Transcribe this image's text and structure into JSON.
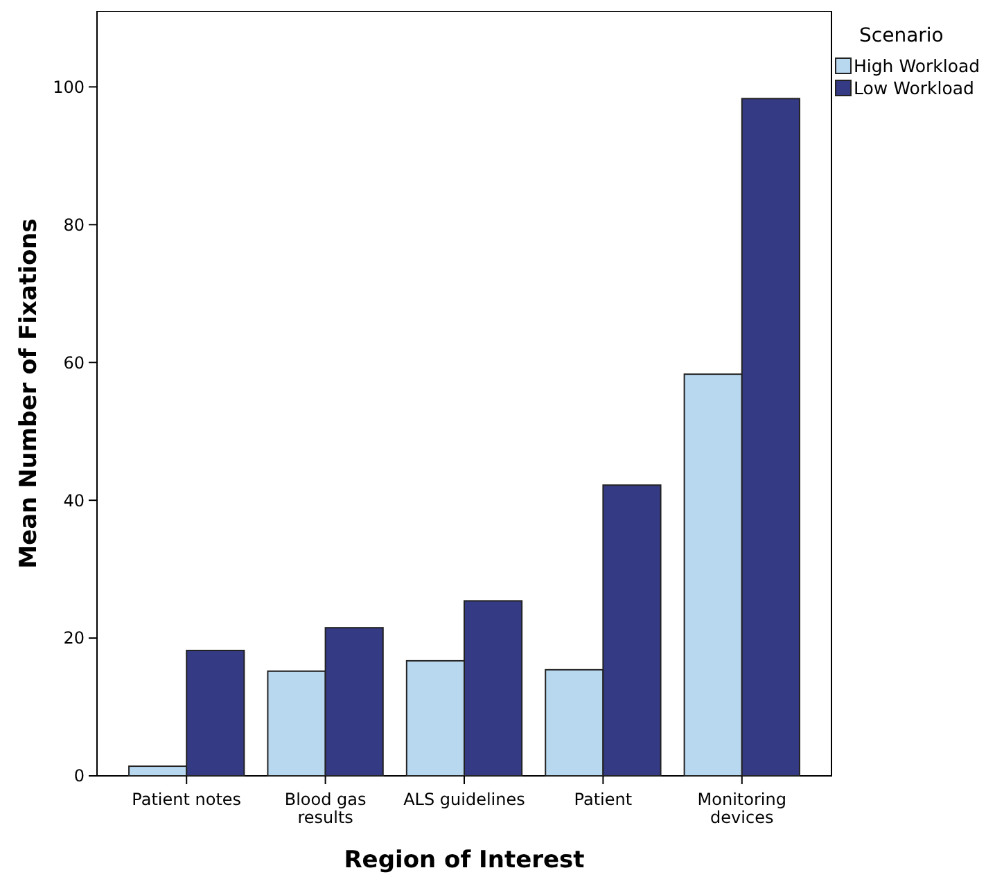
{
  "chart_data": {
    "type": "bar",
    "xlabel": "Region of Interest",
    "ylabel": "Mean Number of Fixations",
    "legend_title": "Scenario",
    "categories": [
      "Patient notes",
      "Blood gas results",
      "ALS guidelines",
      "Patient",
      "Monitoring devices"
    ],
    "series": [
      {
        "name": "High Workload",
        "color": "#b8d8f0",
        "values": [
          1.4,
          15.2,
          16.7,
          15.4,
          58.3
        ]
      },
      {
        "name": "Low Workload",
        "color": "#353a84",
        "values": [
          18.2,
          21.5,
          25.4,
          42.2,
          98.3
        ]
      }
    ],
    "ylim": [
      0,
      111
    ],
    "yticks": [
      0,
      20,
      40,
      60,
      80,
      100
    ],
    "grid": false,
    "legend": "top right"
  }
}
